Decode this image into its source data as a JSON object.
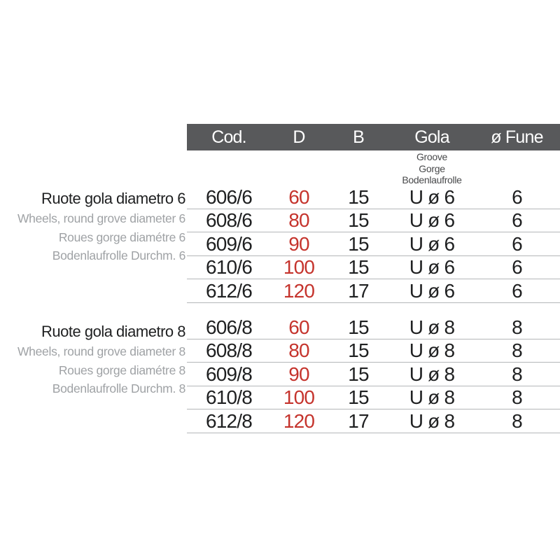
{
  "colors": {
    "header_bg": "#58595b",
    "header_text": "#ffffff",
    "value_red": "#c5342d",
    "text_black": "#1f2021",
    "label_gray": "#9fa2a5",
    "subheader_gray": "#47484a",
    "row_line": "#b4b6b8"
  },
  "table": {
    "headers": {
      "cod": "Cod.",
      "d": "D",
      "b": "B",
      "gola": "Gola",
      "fune": "ø Fune"
    },
    "gola_subheader": [
      "Groove",
      "Gorge",
      "Bodenlaufrolle"
    ],
    "sections": [
      {
        "labels": {
          "title": "Ruote gola diametro 6",
          "subtitles": [
            "Wheels, round grove diameter 6",
            "Roues gorge diamétre 6",
            "Bodenlaufrolle Durchm. 6"
          ]
        },
        "rows": [
          {
            "cod": "606/6",
            "d": "60",
            "b": "15",
            "gola": "U ø 6",
            "fune": "6"
          },
          {
            "cod": "608/6",
            "d": "80",
            "b": "15",
            "gola": "U ø 6",
            "fune": "6"
          },
          {
            "cod": "609/6",
            "d": "90",
            "b": "15",
            "gola": "U ø 6",
            "fune": "6"
          },
          {
            "cod": "610/6",
            "d": "100",
            "b": "15",
            "gola": "U ø 6",
            "fune": "6"
          },
          {
            "cod": "612/6",
            "d": "120",
            "b": "17",
            "gola": "U ø 6",
            "fune": "6"
          }
        ]
      },
      {
        "labels": {
          "title": "Ruote gola diametro 8",
          "subtitles": [
            "Wheels, round grove diameter 8",
            "Roues gorge diamétre 8",
            "Bodenlaufrolle Durchm. 8"
          ]
        },
        "rows": [
          {
            "cod": "606/8",
            "d": "60",
            "b": "15",
            "gola": "U ø 8",
            "fune": "8"
          },
          {
            "cod": "608/8",
            "d": "80",
            "b": "15",
            "gola": "U ø 8",
            "fune": "8"
          },
          {
            "cod": "609/8",
            "d": "90",
            "b": "15",
            "gola": "U ø 8",
            "fune": "8"
          },
          {
            "cod": "610/8",
            "d": "100",
            "b": "15",
            "gola": "U ø 8",
            "fune": "8"
          },
          {
            "cod": "612/8",
            "d": "120",
            "b": "17",
            "gola": "U ø 8",
            "fune": "8"
          }
        ]
      }
    ]
  }
}
